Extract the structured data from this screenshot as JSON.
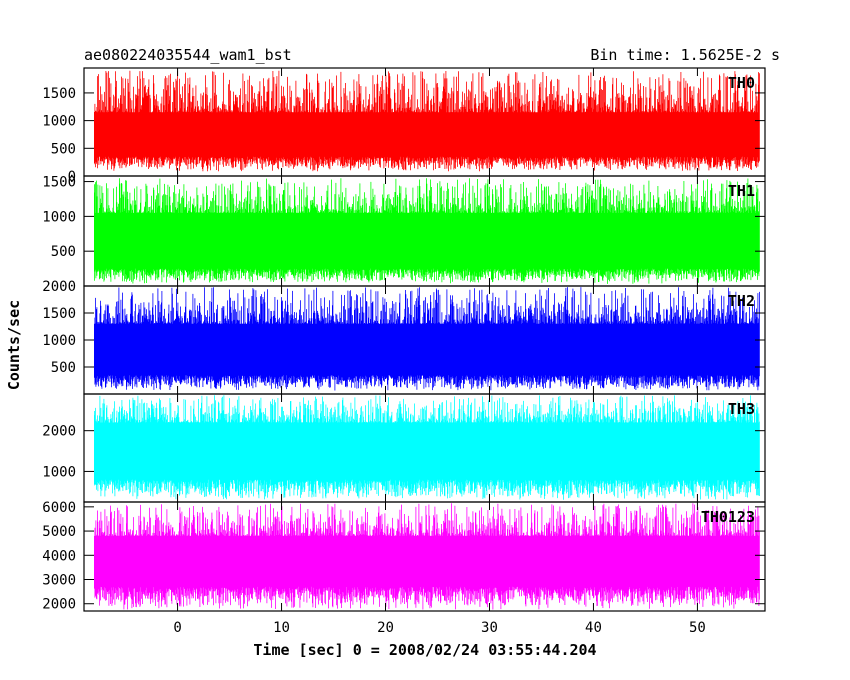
{
  "chart_data": {
    "type": "line",
    "title_left": "ae080224035544_wam1_bst",
    "title_right": "Bin time: 1.5625E-2 s",
    "xlabel": "Time [sec] 0 = 2008/02/24 03:55:44.204",
    "ylabel": "Counts/sec",
    "xlim": [
      -9,
      56.5
    ],
    "x_start": -8,
    "x_end": 56,
    "x_ticks": [
      0,
      10,
      20,
      30,
      40,
      50
    ],
    "x_tick_labels": [
      "0",
      "10",
      "20",
      "30",
      "40",
      "50"
    ],
    "panels": [
      {
        "name": "TH0",
        "color": "#ff0000",
        "ylim": [
          0,
          1950
        ],
        "yticks": [
          0,
          500,
          1000,
          1500
        ],
        "ytick_labels": [
          "0",
          "500",
          "1000",
          "1500"
        ],
        "range_low": 80,
        "range_high": 1900,
        "typical_low": 350,
        "typical_high": 1150
      },
      {
        "name": "TH1",
        "color": "#00ff00",
        "ylim": [
          0,
          1580
        ],
        "yticks": [
          500,
          1000,
          1500
        ],
        "ytick_labels": [
          "500",
          "1000",
          "1500"
        ],
        "range_low": 30,
        "range_high": 1550,
        "typical_low": 250,
        "typical_high": 1050
      },
      {
        "name": "TH2",
        "color": "#0000ff",
        "ylim": [
          0,
          2000
        ],
        "yticks": [
          500,
          1000,
          1500,
          2000
        ],
        "ytick_labels": [
          "500",
          "1000",
          "1500",
          "2000"
        ],
        "range_low": 60,
        "range_high": 1980,
        "typical_low": 350,
        "typical_high": 1300
      },
      {
        "name": "TH3",
        "color": "#00ffff",
        "ylim": [
          250,
          2900
        ],
        "yticks": [
          1000,
          2000
        ],
        "ytick_labels": [
          "1000",
          "2000"
        ],
        "range_low": 300,
        "range_high": 2870,
        "typical_low": 800,
        "typical_high": 2200
      },
      {
        "name": "TH0123",
        "color": "#ff00ff",
        "ylim": [
          1700,
          6200
        ],
        "yticks": [
          2000,
          3000,
          4000,
          5000,
          6000
        ],
        "ytick_labels": [
          "2000",
          "3000",
          "4000",
          "5000",
          "6000"
        ],
        "range_low": 1750,
        "range_high": 6150,
        "typical_low": 2700,
        "typical_high": 4800
      }
    ]
  }
}
